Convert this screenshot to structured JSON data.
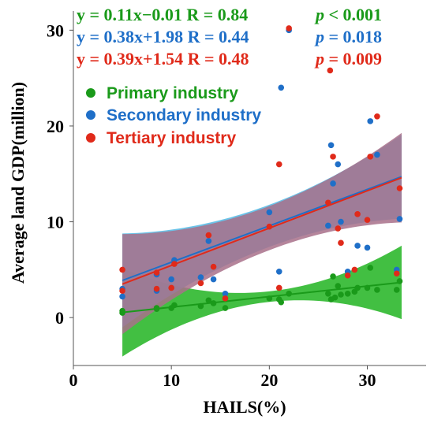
{
  "chart_data": {
    "type": "scatter",
    "xlabel": "HAILS(%)",
    "ylabel": "Average land GDP(million)",
    "xlim": [
      0,
      36
    ],
    "ylim": [
      -5,
      32
    ],
    "xticks": [
      "0",
      "10",
      "20",
      "30"
    ],
    "yticks": [
      "0",
      "10",
      "20",
      "30"
    ],
    "grid": false,
    "legend_position": "top-left",
    "series": [
      {
        "name": "Primary industry",
        "color": "#1a9a1a",
        "band_color": "#2db82d",
        "fit": {
          "slope": 0.11,
          "intercept": -0.01
        },
        "equation": "y = 0.11x−0.01 R = 0.84",
        "p_label": "p",
        "p_value": "< 0.001",
        "points": [
          [
            5,
            0.5
          ],
          [
            5,
            0.7
          ],
          [
            8.5,
            1.0
          ],
          [
            8.5,
            0.9
          ],
          [
            10,
            1.0
          ],
          [
            10.3,
            1.3
          ],
          [
            13,
            1.2
          ],
          [
            13.8,
            1.8
          ],
          [
            14.3,
            1.5
          ],
          [
            15.5,
            1.0
          ],
          [
            20,
            2.0
          ],
          [
            21,
            1.9
          ],
          [
            21.2,
            1.6
          ],
          [
            22,
            2.5
          ],
          [
            26,
            2.5
          ],
          [
            26.3,
            1.9
          ],
          [
            26.7,
            2.1
          ],
          [
            27,
            3.3
          ],
          [
            27.3,
            2.4
          ],
          [
            28,
            2.5
          ],
          [
            28.7,
            2.7
          ],
          [
            29,
            3.1
          ],
          [
            30,
            3.1
          ],
          [
            30.3,
            5.2
          ],
          [
            31,
            2.9
          ],
          [
            33,
            2.9
          ],
          [
            33.3,
            3.8
          ],
          [
            26.5,
            4.3
          ]
        ]
      },
      {
        "name": "Secondary industry",
        "color": "#1f6fc8",
        "band_color": "#5bbce6",
        "fit": {
          "slope": 0.38,
          "intercept": 1.98
        },
        "equation": "y = 0.38x+1.98 R = 0.44",
        "p_label": "p",
        "p_value": "= 0.018",
        "points": [
          [
            5,
            2.2
          ],
          [
            5,
            3.0
          ],
          [
            8.5,
            4.5
          ],
          [
            8.5,
            2.8
          ],
          [
            10,
            4.0
          ],
          [
            10.3,
            6.0
          ],
          [
            13,
            4.2
          ],
          [
            13.8,
            8.0
          ],
          [
            14.3,
            4.0
          ],
          [
            15.5,
            2.5
          ],
          [
            20,
            11.0
          ],
          [
            21,
            4.8
          ],
          [
            21.2,
            24.0
          ],
          [
            22,
            30.0
          ],
          [
            26,
            9.6
          ],
          [
            26.3,
            18.0
          ],
          [
            26.5,
            14.0
          ],
          [
            27,
            16.0
          ],
          [
            27.3,
            10.0
          ],
          [
            28,
            4.8
          ],
          [
            29,
            7.5
          ],
          [
            30,
            7.3
          ],
          [
            30.3,
            20.5
          ],
          [
            31,
            17.0
          ],
          [
            33,
            5.0
          ],
          [
            33.3,
            10.3
          ]
        ]
      },
      {
        "name": "Tertiary industry",
        "color": "#e02a1a",
        "band_color": "#a8708a",
        "fit": {
          "slope": 0.39,
          "intercept": 1.54
        },
        "equation": "y = 0.39x+1.54 R = 0.48",
        "p_label": "p",
        "p_value": "= 0.009",
        "points": [
          [
            5,
            5.0
          ],
          [
            5,
            2.8
          ],
          [
            8.5,
            4.7
          ],
          [
            8.5,
            3.0
          ],
          [
            10,
            3.1
          ],
          [
            10.3,
            5.6
          ],
          [
            13,
            3.6
          ],
          [
            13.8,
            8.6
          ],
          [
            14.3,
            5.3
          ],
          [
            15.5,
            2.0
          ],
          [
            20,
            9.5
          ],
          [
            21,
            16.0
          ],
          [
            21,
            3.1
          ],
          [
            22,
            30.2
          ],
          [
            26,
            12.0
          ],
          [
            26.2,
            25.8
          ],
          [
            26.5,
            16.8
          ],
          [
            27,
            9.3
          ],
          [
            27.3,
            7.8
          ],
          [
            28,
            4.4
          ],
          [
            28.7,
            5.0
          ],
          [
            29,
            10.8
          ],
          [
            30,
            10.2
          ],
          [
            30.3,
            16.8
          ],
          [
            31,
            21.0
          ],
          [
            33,
            4.6
          ],
          [
            33.3,
            13.5
          ]
        ]
      }
    ]
  }
}
